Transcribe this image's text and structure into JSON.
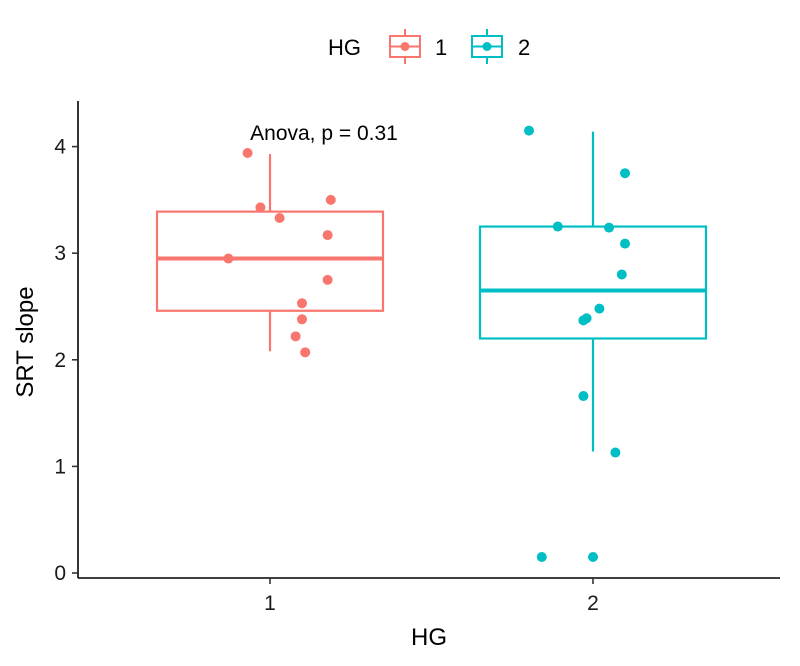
{
  "chart_data": {
    "type": "boxplot",
    "xlabel": "HG",
    "ylabel": "SRT slope",
    "categories": [
      "1",
      "2"
    ],
    "ylim": [
      0,
      4.3
    ],
    "yticks": [
      "0",
      "1",
      "2",
      "3",
      "4"
    ],
    "annotation": "Anova, p = 0.31",
    "legend": {
      "title": "HG",
      "position": "top",
      "entries": [
        "1",
        "2"
      ]
    },
    "grid": false,
    "series": [
      {
        "name": "1",
        "color": "#F8766D",
        "box": {
          "whisker_low": 2.08,
          "q1": 2.46,
          "median": 2.95,
          "q3": 3.39,
          "whisker_high": 3.93
        },
        "points": [
          {
            "x": -0.07,
            "y": 3.94
          },
          {
            "x": -0.03,
            "y": 3.43
          },
          {
            "x": 0.03,
            "y": 3.33
          },
          {
            "x": 0.19,
            "y": 3.5
          },
          {
            "x": 0.18,
            "y": 3.17
          },
          {
            "x": -0.13,
            "y": 2.95
          },
          {
            "x": 0.18,
            "y": 2.75
          },
          {
            "x": 0.1,
            "y": 2.53
          },
          {
            "x": 0.1,
            "y": 2.38
          },
          {
            "x": 0.08,
            "y": 2.22
          },
          {
            "x": 0.11,
            "y": 2.07
          }
        ]
      },
      {
        "name": "2",
        "color": "#00BFC4",
        "box": {
          "whisker_low": 1.14,
          "q1": 2.2,
          "median": 2.65,
          "q3": 3.25,
          "whisker_high": 4.14
        },
        "points": [
          {
            "x": -0.2,
            "y": 4.15
          },
          {
            "x": 0.1,
            "y": 3.75
          },
          {
            "x": -0.11,
            "y": 3.25
          },
          {
            "x": 0.05,
            "y": 3.24
          },
          {
            "x": 0.1,
            "y": 3.09
          },
          {
            "x": 0.09,
            "y": 2.8
          },
          {
            "x": 0.02,
            "y": 2.48
          },
          {
            "x": -0.02,
            "y": 2.39
          },
          {
            "x": -0.03,
            "y": 2.37
          },
          {
            "x": -0.03,
            "y": 1.66
          },
          {
            "x": 0.07,
            "y": 1.13
          },
          {
            "x": -0.16,
            "y": 0.15
          },
          {
            "x": 0.0,
            "y": 0.15
          }
        ]
      }
    ]
  }
}
